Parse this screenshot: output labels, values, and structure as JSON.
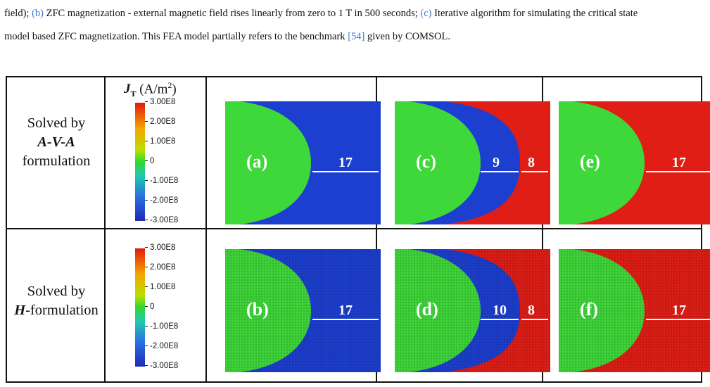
{
  "caption": {
    "line1_a": "field); ",
    "line1_b_ref": "(b)",
    "line1_b": " ZFC magnetization - external magnetic field rises linearly from zero to 1 T in 500 seconds; ",
    "line1_c_ref": "(c)",
    "line1_c": " Iterative algorithm for simulating the critical state",
    "line2_a": "model based ZFC magnetization. This FEA model partially refers to the benchmark ",
    "line2_ref": "[54]",
    "line2_b": " given by COMSOL."
  },
  "rows": [
    {
      "line1": "Solved by",
      "line2": "A-V-A",
      "line3": "formulation"
    },
    {
      "line1": "Solved by",
      "line2": "H",
      "line2_suffix": "-formulation"
    }
  ],
  "colorbar": {
    "title_symbol": "J",
    "title_sub": "T",
    "title_unit": " (A/m",
    "title_sup": "2",
    "title_close": ")",
    "ticks": [
      "3.00E8",
      "2.00E8",
      "1.00E8",
      "0",
      "-1.00E8",
      "-2.00E8",
      "-3.00E8"
    ]
  },
  "panels": {
    "a": {
      "label": "(a)",
      "dims": [
        "17"
      ]
    },
    "b": {
      "label": "(b)",
      "dims": [
        "17"
      ]
    },
    "c": {
      "label": "(c)",
      "dims": [
        "9",
        "8"
      ]
    },
    "d": {
      "label": "(d)",
      "dims": [
        "10",
        "8"
      ]
    },
    "e": {
      "label": "(e)",
      "dims": [
        "17"
      ]
    },
    "f": {
      "label": "(f)",
      "dims": [
        "17"
      ]
    }
  },
  "colors": {
    "green": "#3fd83a",
    "blue": "#1d3fd0",
    "red": "#e01e16"
  }
}
